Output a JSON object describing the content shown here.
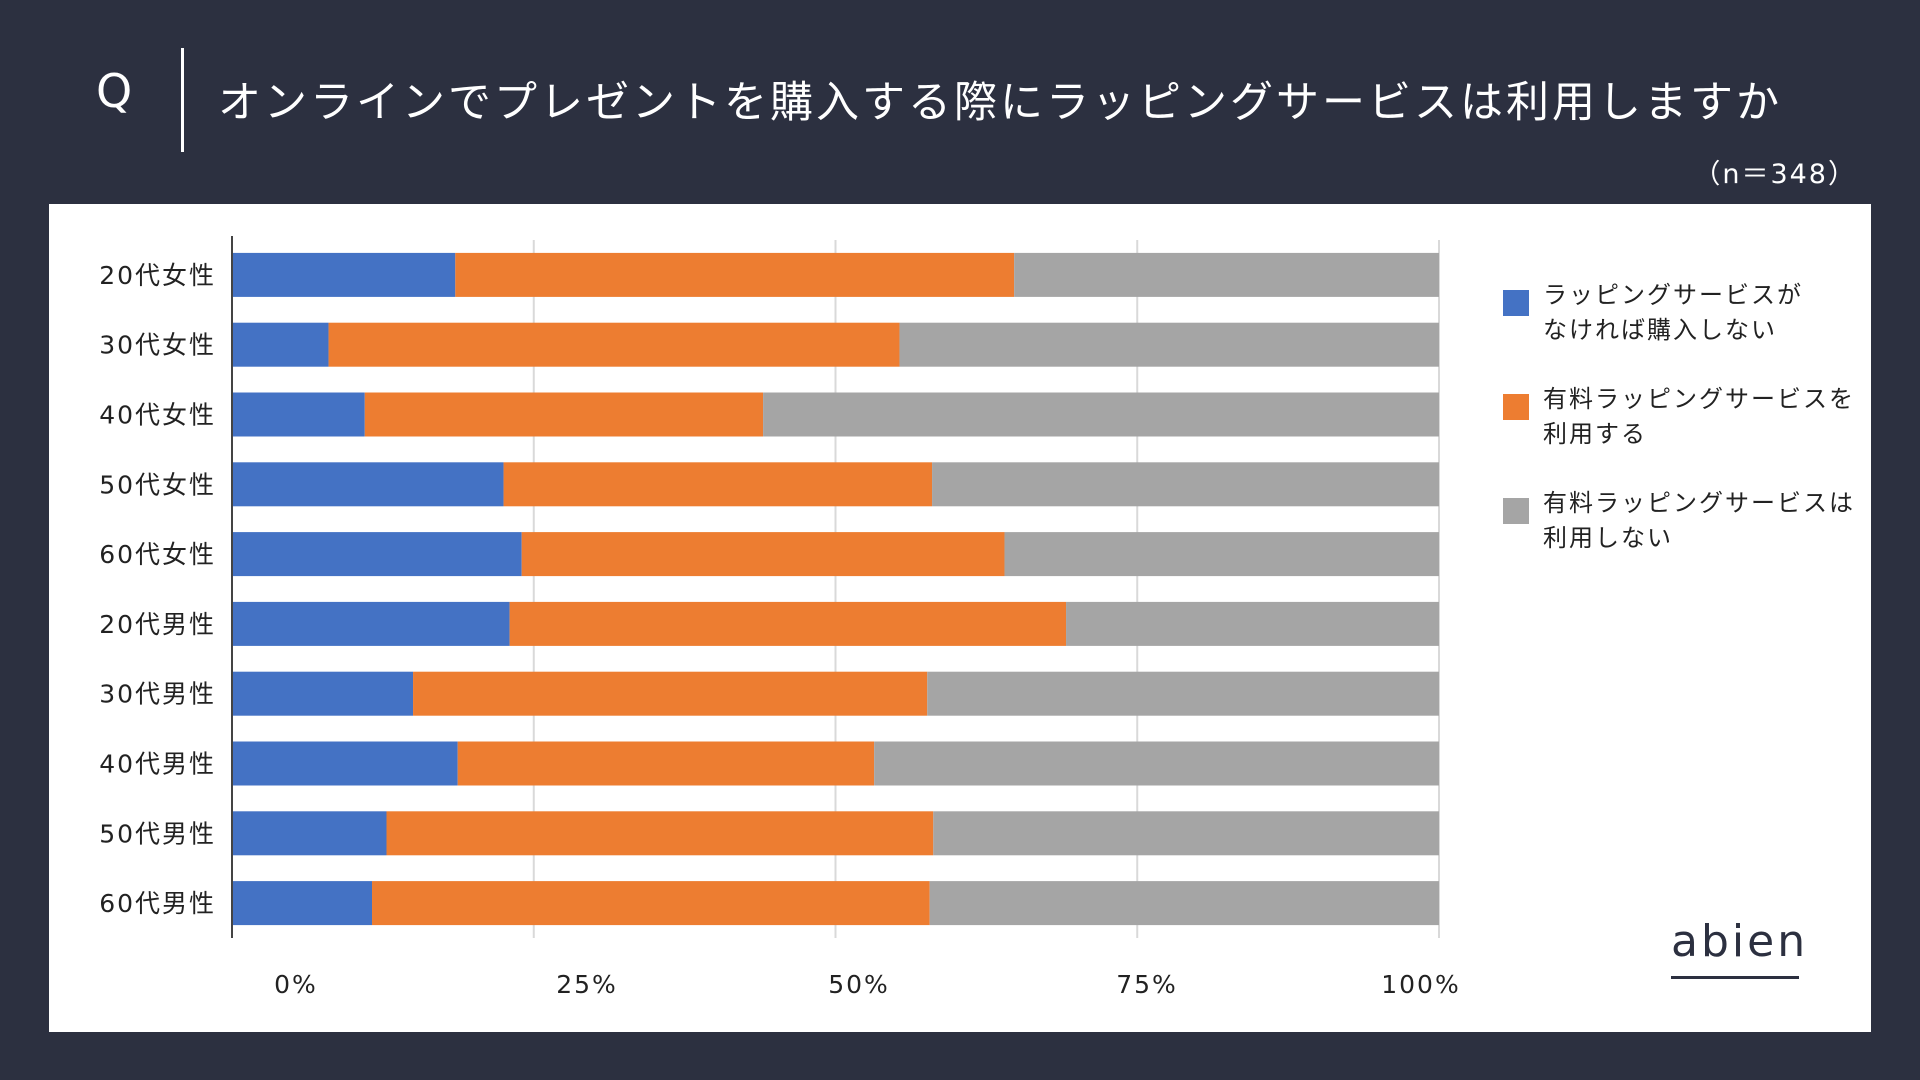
{
  "header": {
    "q_mark": "Q",
    "question": "オンラインでプレゼントを購入する際にラッピングサービスは利用しますか",
    "sample": "（n＝348）"
  },
  "logo": {
    "text": "abien"
  },
  "colors": {
    "background": "#2c3040",
    "series_blue": "#4472c4",
    "series_orange": "#ed7d31",
    "series_gray": "#a5a5a5"
  },
  "chart_data": {
    "type": "bar",
    "orientation": "horizontal",
    "stacked": true,
    "categories": [
      "20代女性",
      "30代女性",
      "40代女性",
      "50代女性",
      "60代女性",
      "20代男性",
      "30代男性",
      "40代男性",
      "50代男性",
      "60代男性"
    ],
    "series": [
      {
        "name": "ラッピングサービスが\nなければ購入しない",
        "color": "#4472c4",
        "values": [
          18.5,
          8,
          11,
          22.5,
          24,
          23,
          15,
          18.7,
          12.8,
          11.6
        ]
      },
      {
        "name": "有料ラッピングサービスを\n利用する",
        "color": "#ed7d31",
        "values": [
          46.3,
          47.3,
          33,
          35.5,
          40,
          46.1,
          42.6,
          34.5,
          45.3,
          46.2
        ]
      },
      {
        "name": "有料ラッピングサービスは\n利用しない",
        "color": "#a5a5a5",
        "values": [
          35.2,
          44.7,
          56,
          42,
          36,
          30.9,
          42.4,
          46.8,
          41.9,
          42.2
        ]
      }
    ],
    "x_ticks": [
      "0%",
      "25%",
      "50%",
      "75%",
      "100%"
    ],
    "xlim": [
      0,
      100
    ],
    "grid": true,
    "legend_position": "right"
  }
}
